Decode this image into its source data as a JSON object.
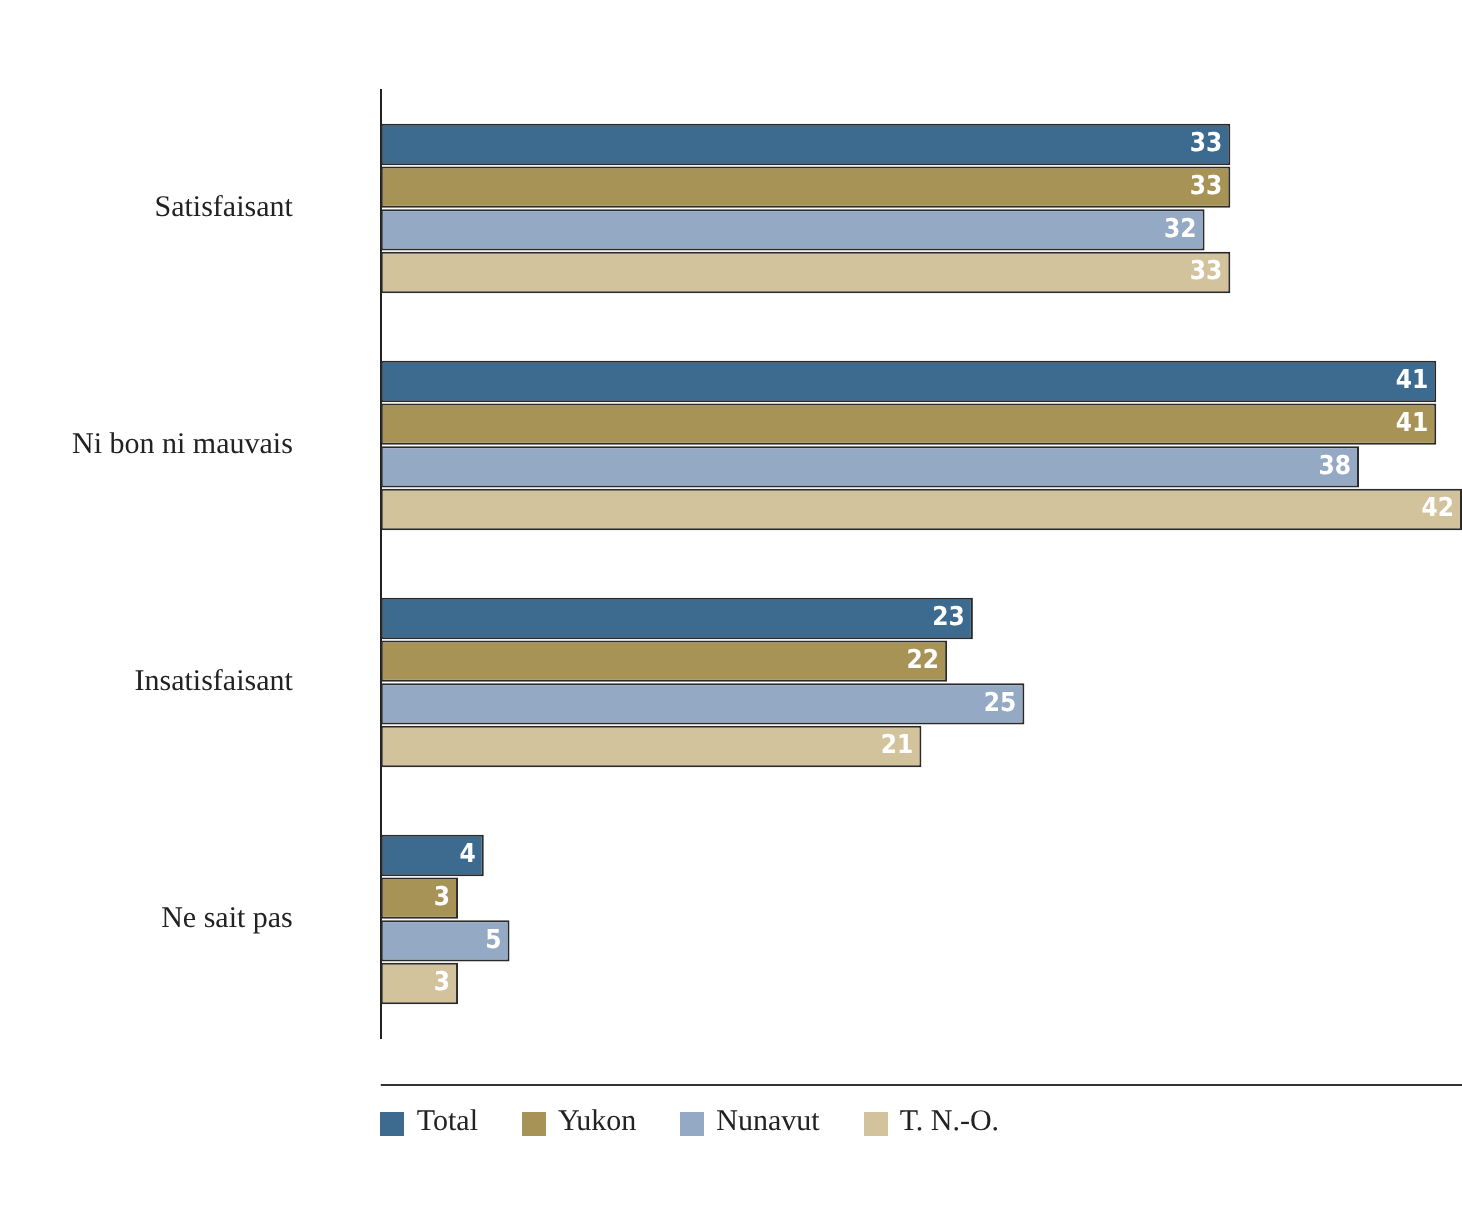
{
  "chart_data": {
    "type": "bar",
    "orientation": "horizontal",
    "categories": [
      "Satisfaisant",
      "Ni bon ni mauvais",
      "Insatisfaisant",
      "Ne sait pas"
    ],
    "series": [
      {
        "name": "Total",
        "color": "#3d6b8f",
        "values": [
          33,
          41,
          23,
          4
        ]
      },
      {
        "name": "Yukon",
        "color": "#a89357",
        "values": [
          33,
          41,
          22,
          3
        ]
      },
      {
        "name": "Nunavut",
        "color": "#94a9c3",
        "values": [
          32,
          38,
          25,
          5
        ]
      },
      {
        "name": "T. N.-O.",
        "color": "#d3c39d",
        "values": [
          33,
          42,
          21,
          3
        ]
      }
    ],
    "data_labels": true,
    "legend": "bottom",
    "grid": false
  }
}
